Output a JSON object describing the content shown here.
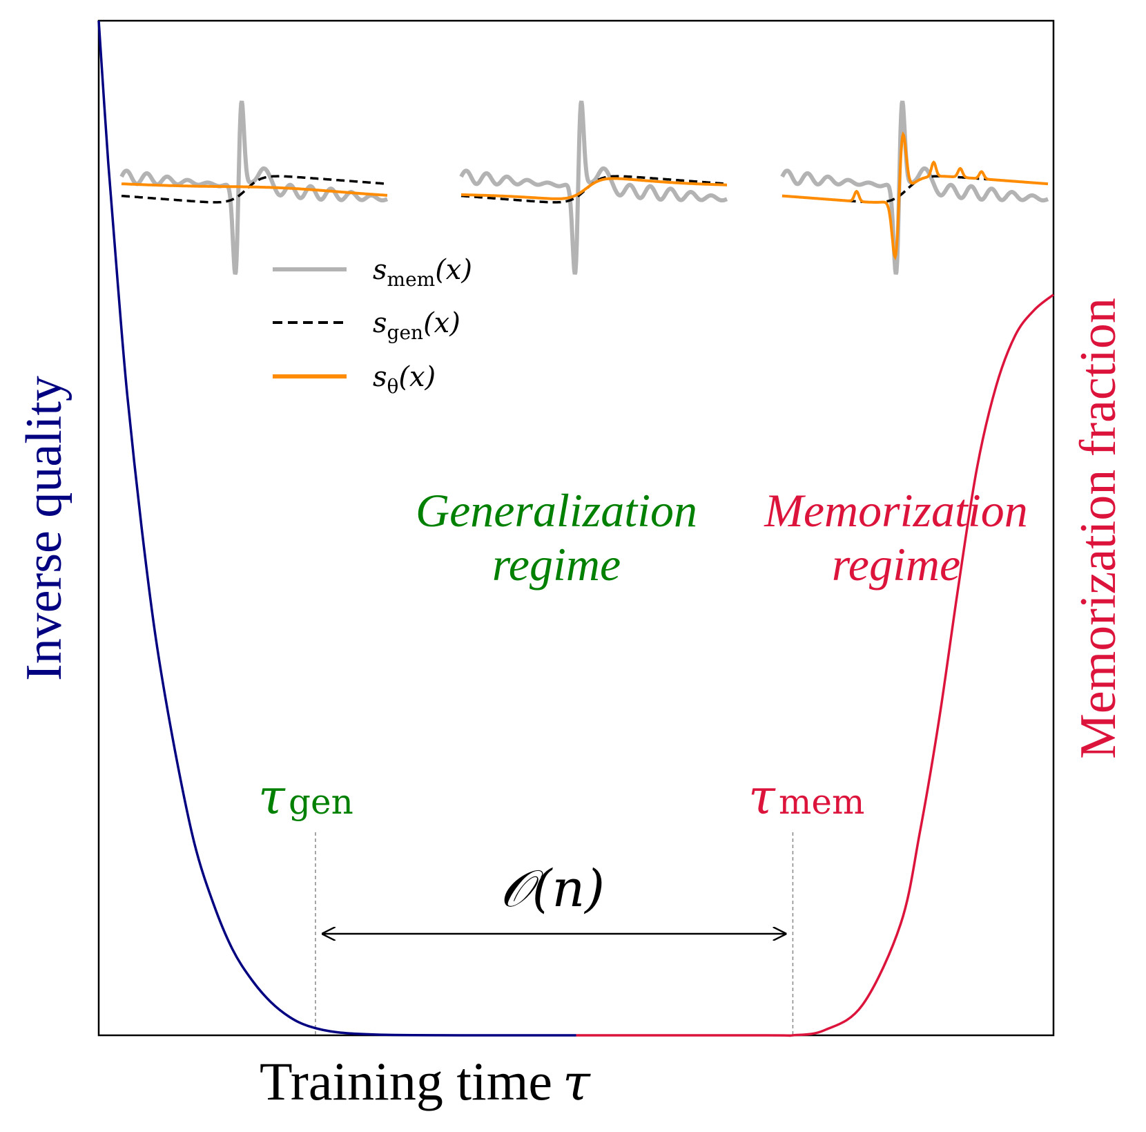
{
  "chart_data": {
    "type": "line",
    "xlabel": "Training time",
    "xlabel_symbol": "τ",
    "ylabel_left": "Inverse quality",
    "ylabel_right": "Memorization fraction",
    "grid": false,
    "xlim": [
      0,
      1
    ],
    "ylim": [
      0,
      1
    ],
    "series": [
      {
        "name": "Inverse quality",
        "axis": "left",
        "color": "#000080",
        "x": [
          0.0,
          0.01,
          0.02,
          0.03,
          0.045,
          0.06,
          0.08,
          0.1,
          0.12,
          0.14,
          0.16,
          0.18,
          0.2,
          0.22,
          0.25,
          0.3,
          0.4,
          0.5
        ],
        "y": [
          1.0,
          0.86,
          0.74,
          0.63,
          0.5,
          0.39,
          0.28,
          0.19,
          0.13,
          0.085,
          0.055,
          0.033,
          0.018,
          0.009,
          0.003,
          0.0005,
          0.0,
          0.0
        ]
      },
      {
        "name": "Memorization fraction",
        "axis": "right",
        "color": "#dc143c",
        "x": [
          0.5,
          0.7,
          0.727,
          0.76,
          0.8,
          0.84,
          0.86,
          0.88,
          0.9,
          0.92,
          0.94,
          0.96,
          0.98,
          1.0
        ],
        "y": [
          0.0,
          0.0,
          0.0,
          0.005,
          0.03,
          0.11,
          0.2,
          0.31,
          0.44,
          0.56,
          0.64,
          0.69,
          0.715,
          0.73
        ]
      }
    ],
    "markers": [
      {
        "label": "τ",
        "subscript": "gen",
        "x": 0.227,
        "color": "#008000"
      },
      {
        "label": "τ",
        "subscript": "mem",
        "x": 0.727,
        "color": "#dc143c"
      }
    ],
    "interval_annotation": {
      "label": "𝒪(n)",
      "from": "gen",
      "to": "mem"
    },
    "regime_labels": [
      {
        "line1": "Generalization",
        "line2": "regime",
        "color": "#008000"
      },
      {
        "line1": "Memorization",
        "line2": "regime",
        "color": "#dc143c"
      }
    ],
    "legend": {
      "placement": "upper-left",
      "entries": [
        {
          "symbol": "s",
          "subscript": "mem",
          "suffix": "(x)",
          "color": "#b3b3b3",
          "style": "solid"
        },
        {
          "symbol": "s",
          "subscript": "gen",
          "suffix": "(x)",
          "color": "#000000",
          "style": "dashed"
        },
        {
          "symbol": "s",
          "subscript": "θ",
          "suffix": "(x)",
          "color": "#ff8c00",
          "style": "solid"
        }
      ]
    },
    "insets": [
      {
        "panel": "early",
        "fit": "smooth"
      },
      {
        "panel": "generalization",
        "fit": "matches s_gen"
      },
      {
        "panel": "memorization",
        "fit": "follows s_mem"
      }
    ]
  }
}
